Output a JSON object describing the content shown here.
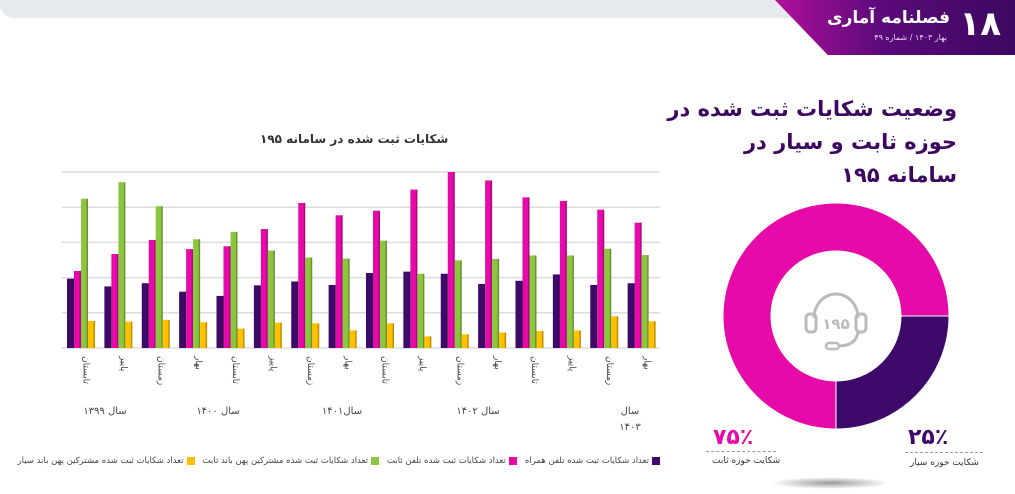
{
  "header": {
    "issue_number": "۱۸",
    "magazine_title": "فصلنامه آماری",
    "subtitle": "بهار ۱۴۰۳ /  شماره ۴۹",
    "brand_color": "#4a0a6e"
  },
  "main_title": "وضعیت شکایات ثبت شده در حوزه ثابت و سیار در سامانه ۱۹۵",
  "chart_data": [
    {
      "type": "bar",
      "title": "شکایات ثبت شده در سامانه ۱۹۵",
      "categories": [
        "تابستان",
        "پاییز",
        "زمستان",
        "بهار",
        "تابستان",
        "پاییز",
        "زمستان",
        "بهار",
        "تابستان",
        "پاییز",
        "زمستان",
        "بهار",
        "تابستان",
        "پاییز",
        "زمستان",
        "بهار"
      ],
      "year_labels": [
        "سال ۱۳۹۹",
        "سال ۱۴۰۰",
        "سال۱۴۰۱",
        "سال ۱۴۰۲",
        "سال ۱۴۰۳"
      ],
      "grid": true,
      "ylim": [
        0,
        5
      ],
      "legend_position": "bottom",
      "series": [
        {
          "name": "تعداد شکایات ثبت شده تلفن همراه",
          "color": "#3d0a6b",
          "values": [
            1.97,
            1.75,
            1.84,
            1.6,
            1.48,
            1.78,
            1.89,
            1.79,
            2.13,
            2.17,
            2.11,
            1.82,
            1.91,
            2.09,
            1.79,
            1.84
          ]
        },
        {
          "name": "تعداد شکایات ثبت شده تلفن ثابت",
          "color": "#e60aa8",
          "values": [
            2.19,
            2.67,
            3.07,
            2.81,
            2.89,
            3.38,
            4.12,
            3.77,
            3.9,
            4.5,
            5.0,
            4.76,
            4.28,
            4.18,
            3.93,
            3.56
          ]
        },
        {
          "name": "تعداد شکایات ثبت شده مشترکین پهن باند ثابت",
          "color": "#8cc63f",
          "values": [
            4.24,
            4.71,
            4.03,
            3.09,
            3.3,
            2.77,
            2.57,
            2.54,
            3.05,
            2.11,
            2.49,
            2.53,
            2.63,
            2.63,
            2.82,
            2.64
          ]
        },
        {
          "name": "تعداد شکایات ثبت شده مشترکین پهن باند سیار",
          "color": "#ffc000",
          "values": [
            0.77,
            0.75,
            0.8,
            0.73,
            0.55,
            0.72,
            0.7,
            0.5,
            0.7,
            0.33,
            0.39,
            0.44,
            0.48,
            0.5,
            0.9,
            0.76
          ]
        }
      ]
    },
    {
      "type": "pie",
      "center_icon": "headset-icon",
      "center_text": "۱۹۵",
      "slices": [
        {
          "label": "شکایت حوزه ثابت",
          "value": 75,
          "display": "۷۵٪",
          "color": "#e60aa8"
        },
        {
          "label": "شکایت حوزه سیار",
          "value": 25,
          "display": "۲۵٪",
          "color": "#3d0a6b"
        }
      ]
    }
  ]
}
